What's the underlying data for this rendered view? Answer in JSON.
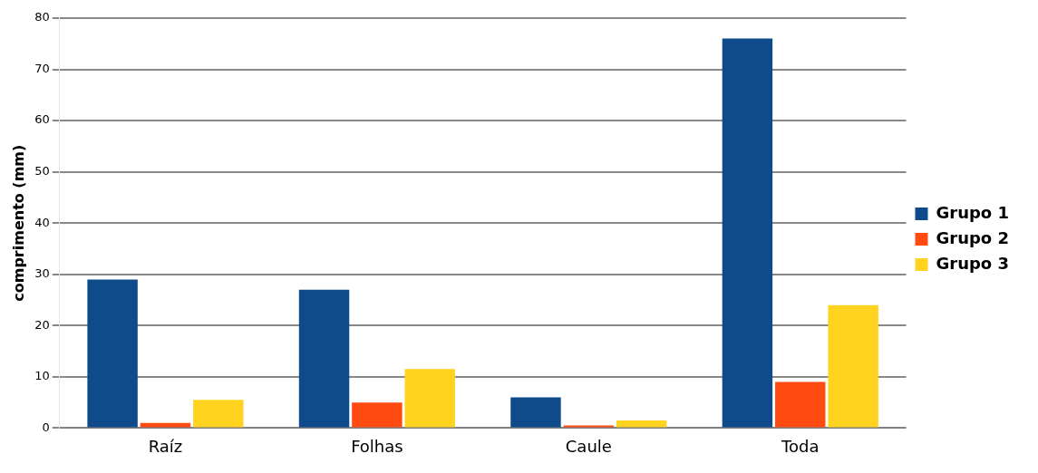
{
  "chart_data": {
    "type": "bar",
    "ylabel": "comprimento (mm)",
    "categories": [
      "Raíz",
      "Folhas",
      "Caule",
      "Toda"
    ],
    "series": [
      {
        "name": "Grupo 1",
        "color": "#0f4a8a",
        "values": [
          29,
          27,
          6,
          76
        ]
      },
      {
        "name": "Grupo 2",
        "color": "#ff4a12",
        "values": [
          1,
          5,
          0.5,
          9
        ]
      },
      {
        "name": "Grupo 3",
        "color": "#ffd320",
        "values": [
          5.5,
          11.5,
          1.5,
          24
        ]
      }
    ],
    "ylim": [
      0,
      80
    ],
    "yticks": [
      0,
      10,
      20,
      30,
      40,
      50,
      60,
      70,
      80
    ],
    "grid": "y",
    "legend": "right"
  }
}
